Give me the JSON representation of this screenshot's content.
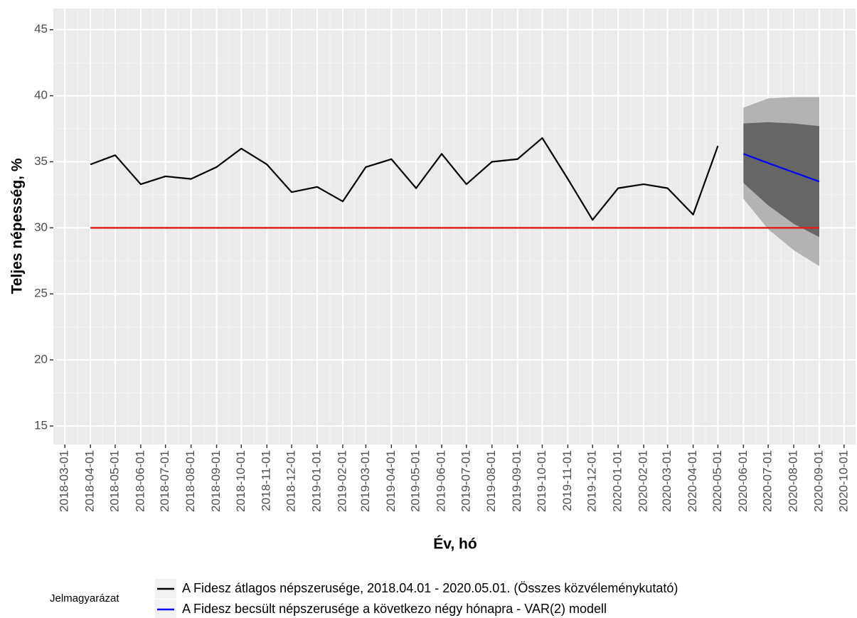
{
  "chart_data": {
    "type": "line",
    "x_label": "Év, hó",
    "y_label": "Teljes népesség, %",
    "legend_title": "Jelmagyarázat",
    "x": [
      "2018-04-01",
      "2018-05-01",
      "2018-06-01",
      "2018-07-01",
      "2018-08-01",
      "2018-09-01",
      "2018-10-01",
      "2018-11-01",
      "2018-12-01",
      "2019-01-01",
      "2019-02-01",
      "2019-03-01",
      "2019-04-01",
      "2019-05-01",
      "2019-06-01",
      "2019-07-01",
      "2019-08-01",
      "2019-09-01",
      "2019-10-01",
      "2019-11-01",
      "2019-12-01",
      "2020-01-01",
      "2020-02-01",
      "2020-03-01",
      "2020-04-01",
      "2020-05-01",
      "2020-06-01",
      "2020-07-01",
      "2020-08-01",
      "2020-09-01"
    ],
    "series": [
      {
        "name": "A Fidesz átlagos népszerusége, 2018.04.01 - 2020.05.01. (Összes közvéleménykutató)",
        "color": "#000000",
        "values": [
          34.8,
          35.5,
          33.3,
          33.9,
          33.7,
          34.6,
          36.0,
          34.8,
          32.7,
          33.1,
          32.0,
          34.6,
          35.2,
          33.0,
          35.6,
          33.3,
          35.0,
          35.2,
          36.8,
          33.7,
          30.6,
          33.0,
          33.3,
          33.0,
          31.0,
          36.2,
          null,
          null,
          null,
          null
        ]
      },
      {
        "name": "A Fidesz becsült népszerusége a következo négy hónapra - VAR(2) modell",
        "color": "#0000ff",
        "values": [
          null,
          null,
          null,
          null,
          null,
          null,
          null,
          null,
          null,
          null,
          null,
          null,
          null,
          null,
          null,
          null,
          null,
          null,
          null,
          null,
          null,
          null,
          null,
          null,
          null,
          null,
          35.6,
          34.9,
          34.2,
          33.5
        ]
      }
    ],
    "bands": [
      {
        "color": "#b3b3b3",
        "lower": [
          null,
          null,
          null,
          null,
          null,
          null,
          null,
          null,
          null,
          null,
          null,
          null,
          null,
          null,
          null,
          null,
          null,
          null,
          null,
          null,
          null,
          null,
          null,
          null,
          null,
          null,
          32.2,
          29.9,
          28.3,
          27.1
        ],
        "upper": [
          null,
          null,
          null,
          null,
          null,
          null,
          null,
          null,
          null,
          null,
          null,
          null,
          null,
          null,
          null,
          null,
          null,
          null,
          null,
          null,
          null,
          null,
          null,
          null,
          null,
          null,
          39.1,
          39.8,
          39.9,
          39.9
        ]
      },
      {
        "color": "#666666",
        "lower": [
          null,
          null,
          null,
          null,
          null,
          null,
          null,
          null,
          null,
          null,
          null,
          null,
          null,
          null,
          null,
          null,
          null,
          null,
          null,
          null,
          null,
          null,
          null,
          null,
          null,
          null,
          33.4,
          31.7,
          30.3,
          29.3
        ],
        "upper": [
          null,
          null,
          null,
          null,
          null,
          null,
          null,
          null,
          null,
          null,
          null,
          null,
          null,
          null,
          null,
          null,
          null,
          null,
          null,
          null,
          null,
          null,
          null,
          null,
          null,
          null,
          37.9,
          38.0,
          37.9,
          37.7
        ]
      }
    ],
    "reference_line": {
      "y": 30,
      "color": "#e0201b"
    },
    "xlim": [
      "2018-02-15",
      "2020-10-15"
    ],
    "xticks": [
      "2018-03-01",
      "2018-04-01",
      "2018-05-01",
      "2018-06-01",
      "2018-07-01",
      "2018-08-01",
      "2018-09-01",
      "2018-10-01",
      "2018-11-01",
      "2018-12-01",
      "2019-01-01",
      "2019-02-01",
      "2019-03-01",
      "2019-04-01",
      "2019-05-01",
      "2019-06-01",
      "2019-07-01",
      "2019-08-01",
      "2019-09-01",
      "2019-10-01",
      "2019-11-01",
      "2019-12-01",
      "2020-01-01",
      "2020-02-01",
      "2020-03-01",
      "2020-04-01",
      "2020-05-01",
      "2020-06-01",
      "2020-07-01",
      "2020-08-01",
      "2020-09-01",
      "2020-10-01"
    ],
    "ylim": [
      13.6,
      46.6
    ],
    "yticks": [
      15,
      20,
      25,
      30,
      35,
      40,
      45
    ],
    "grid": true,
    "legend": "bottom-left"
  }
}
